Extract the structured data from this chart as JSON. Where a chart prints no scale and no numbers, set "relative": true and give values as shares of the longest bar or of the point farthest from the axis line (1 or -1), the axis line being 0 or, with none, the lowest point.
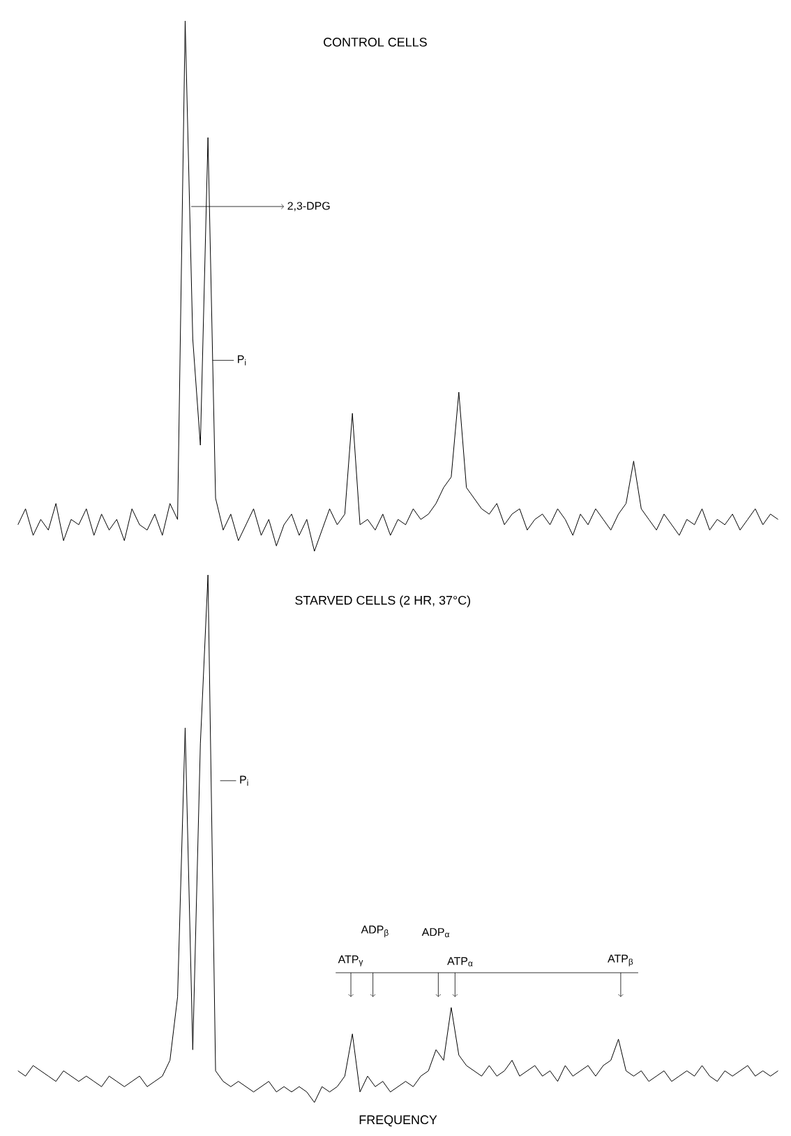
{
  "chart_data": [
    {
      "type": "line",
      "relative": true,
      "color": "#000000",
      "title": "CONTROL CELLS",
      "annotations": [
        "2,3-DPG",
        "P$_{i}$"
      ],
      "categories": [
        null,
        null,
        null,
        null,
        null,
        null,
        null,
        null,
        null,
        null,
        null,
        null,
        null,
        null,
        null,
        null,
        null,
        null,
        null,
        null,
        null,
        null,
        null,
        null,
        null,
        null,
        null,
        null,
        null,
        null,
        null,
        null,
        null,
        null,
        null,
        null,
        null,
        null,
        null,
        null,
        null,
        null,
        null,
        null,
        null,
        null,
        null,
        null,
        null,
        null,
        null,
        null,
        null,
        null,
        null,
        null,
        null,
        null,
        null,
        null,
        null,
        null,
        null,
        null,
        null,
        null,
        null,
        null,
        null,
        null,
        null,
        null,
        null,
        null,
        null,
        null,
        null,
        null,
        null,
        null,
        null,
        null,
        null,
        null,
        null,
        null,
        null,
        null,
        null,
        null,
        null,
        null,
        null,
        null,
        null,
        null,
        null,
        null,
        null,
        null,
        null
      ],
      "values": [
        0.05,
        0.08,
        0.03,
        0.06,
        0.04,
        0.09,
        0.02,
        0.06,
        0.05,
        0.08,
        0.03,
        0.07,
        0.04,
        0.06,
        0.02,
        0.08,
        0.05,
        0.04,
        0.07,
        0.03,
        0.09,
        0.06,
        1.0,
        0.4,
        0.2,
        0.78,
        0.1,
        0.04,
        0.07,
        0.02,
        0.05,
        0.08,
        0.03,
        0.06,
        0.01,
        0.05,
        0.07,
        0.03,
        0.06,
        0.0,
        0.04,
        0.08,
        0.05,
        0.07,
        0.26,
        0.05,
        0.06,
        0.04,
        0.07,
        0.03,
        0.06,
        0.05,
        0.08,
        0.06,
        0.07,
        0.09,
        0.12,
        0.14,
        0.3,
        0.12,
        0.1,
        0.08,
        0.07,
        0.09,
        0.05,
        0.07,
        0.08,
        0.04,
        0.06,
        0.07,
        0.05,
        0.08,
        0.06,
        0.03,
        0.07,
        0.05,
        0.08,
        0.06,
        0.04,
        0.07,
        0.09,
        0.17,
        0.08,
        0.06,
        0.04,
        0.07,
        0.05,
        0.03,
        0.06,
        0.05,
        0.08,
        0.04,
        0.06,
        0.05,
        0.07,
        0.04,
        0.06,
        0.08,
        0.05,
        0.07,
        0.06
      ]
    },
    {
      "type": "line",
      "relative": true,
      "color": "#000000",
      "title": "STARVED CELLS (2 HR, 37°C)",
      "xlabel": "FREQUENCY",
      "annotations": [
        "P$_{i}$",
        "ATP$_{γ}$",
        "ADP$_{β}$",
        "ADP$_{α}$",
        "ATP$_{α}$",
        "ATP$_{β}$"
      ],
      "categories": [
        null,
        null,
        null,
        null,
        null,
        null,
        null,
        null,
        null,
        null,
        null,
        null,
        null,
        null,
        null,
        null,
        null,
        null,
        null,
        null,
        null,
        null,
        null,
        null,
        null,
        null,
        null,
        null,
        null,
        null,
        null,
        null,
        null,
        null,
        null,
        null,
        null,
        null,
        null,
        null,
        null,
        null,
        null,
        null,
        null,
        null,
        null,
        null,
        null,
        null,
        null,
        null,
        null,
        null,
        null,
        null,
        null,
        null,
        null,
        null,
        null,
        null,
        null,
        null,
        null,
        null,
        null,
        null,
        null,
        null,
        null,
        null,
        null,
        null,
        null,
        null,
        null,
        null,
        null,
        null,
        null,
        null,
        null,
        null,
        null,
        null,
        null,
        null,
        null,
        null,
        null,
        null,
        null,
        null,
        null,
        null,
        null,
        null,
        null,
        null,
        null
      ],
      "values": [
        0.06,
        0.05,
        0.07,
        0.06,
        0.05,
        0.04,
        0.06,
        0.05,
        0.04,
        0.05,
        0.04,
        0.03,
        0.05,
        0.04,
        0.03,
        0.04,
        0.05,
        0.03,
        0.04,
        0.05,
        0.08,
        0.2,
        0.71,
        0.1,
        0.68,
        1.0,
        0.06,
        0.04,
        0.03,
        0.04,
        0.03,
        0.02,
        0.03,
        0.04,
        0.02,
        0.03,
        0.02,
        0.03,
        0.02,
        0.0,
        0.03,
        0.02,
        0.03,
        0.05,
        0.13,
        0.02,
        0.05,
        0.03,
        0.04,
        0.02,
        0.03,
        0.04,
        0.03,
        0.05,
        0.06,
        0.1,
        0.08,
        0.18,
        0.09,
        0.07,
        0.06,
        0.05,
        0.07,
        0.05,
        0.06,
        0.08,
        0.05,
        0.06,
        0.07,
        0.05,
        0.06,
        0.04,
        0.07,
        0.05,
        0.06,
        0.07,
        0.05,
        0.07,
        0.08,
        0.12,
        0.06,
        0.05,
        0.06,
        0.04,
        0.05,
        0.06,
        0.04,
        0.05,
        0.06,
        0.05,
        0.07,
        0.05,
        0.04,
        0.06,
        0.05,
        0.06,
        0.07,
        0.05,
        0.06,
        0.05,
        0.06
      ]
    }
  ]
}
